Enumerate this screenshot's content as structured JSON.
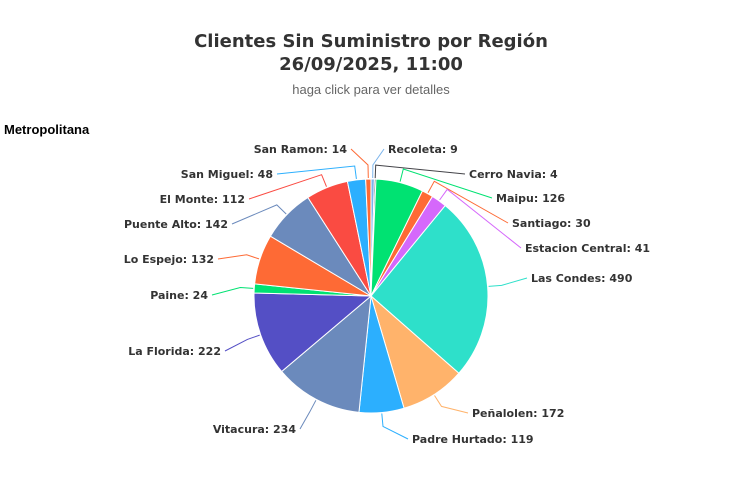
{
  "header": {
    "title_line1": "Clientes Sin Suministro por Región",
    "title_line2": "26/09/2025, 11:00",
    "subtitle": "haga click para ver detalles"
  },
  "region_label": "Metropolitana",
  "chart_data": {
    "type": "pie",
    "title": "Clientes Sin Suministro por Región",
    "subtitle": "26/09/2025, 11:00",
    "legend": "none",
    "slices": [
      {
        "name": "Recoleta",
        "value": 9,
        "color": "#7cb5ec"
      },
      {
        "name": "Cerro Navia",
        "value": 4,
        "color": "#434348"
      },
      {
        "name": "Maipu",
        "value": 126,
        "color": "#00e272"
      },
      {
        "name": "Santiago",
        "value": 30,
        "color": "#fe6a35"
      },
      {
        "name": "Estacion Central",
        "value": 41,
        "color": "#d568fb"
      },
      {
        "name": "Las Condes",
        "value": 490,
        "color": "#2ee0ca"
      },
      {
        "name": "Peñalolen",
        "value": 172,
        "color": "#ffb36b"
      },
      {
        "name": "Padre Hurtado",
        "value": 119,
        "color": "#2caffe"
      },
      {
        "name": "Vitacura",
        "value": 234,
        "color": "#6b8abc"
      },
      {
        "name": "La Florida",
        "value": 222,
        "color": "#544fc5"
      },
      {
        "name": "Paine",
        "value": 24,
        "color": "#00e272"
      },
      {
        "name": "Lo Espejo",
        "value": 132,
        "color": "#fe6a35"
      },
      {
        "name": "Puente Alto",
        "value": 142,
        "color": "#6b8abc"
      },
      {
        "name": "El Monte",
        "value": 112,
        "color": "#fa4b42"
      },
      {
        "name": "San Miguel",
        "value": 48,
        "color": "#2caffe"
      },
      {
        "name": "San Ramon",
        "value": 14,
        "color": "#fe6a35"
      }
    ]
  }
}
